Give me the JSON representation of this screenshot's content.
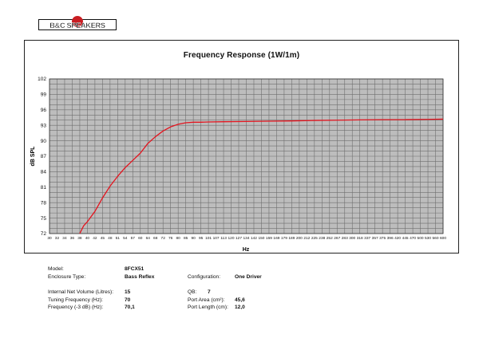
{
  "brand": {
    "logo_text": "B&C SPEAKERS"
  },
  "chart_data": {
    "type": "line",
    "title": "Frequency Response (1W/1m)",
    "xlabel": "Hz",
    "ylabel": "dB SPL",
    "ylim": [
      72,
      102
    ],
    "yticks": [
      72,
      75,
      78,
      81,
      84,
      87,
      90,
      93,
      96,
      99,
      102
    ],
    "xticks": [
      "30",
      "32",
      "34",
      "36",
      "38",
      "40",
      "42",
      "45",
      "48",
      "51",
      "54",
      "57",
      "60",
      "64",
      "68",
      "72",
      "76",
      "80",
      "85",
      "90",
      "95",
      "101",
      "107",
      "113",
      "120",
      "127",
      "134",
      "142",
      "150",
      "159",
      "169",
      "179",
      "189",
      "200",
      "212",
      "225",
      "238",
      "252",
      "267",
      "283",
      "300",
      "318",
      "337",
      "357",
      "375",
      "396",
      "420",
      "445",
      "470",
      "500",
      "530",
      "560",
      "600"
    ],
    "grid": true,
    "series": [
      {
        "color": "#e3151f",
        "points": [
          [
            38,
            72.0
          ],
          [
            39,
            73.5
          ],
          [
            40,
            74.3
          ],
          [
            42,
            76.3
          ],
          [
            45,
            78.9
          ],
          [
            48,
            81.2
          ],
          [
            51,
            83.1
          ],
          [
            54,
            84.8
          ],
          [
            57,
            86.2
          ],
          [
            60,
            87.6
          ],
          [
            64,
            89.5
          ],
          [
            68,
            90.8
          ],
          [
            72,
            91.9
          ],
          [
            76,
            92.7
          ],
          [
            80,
            93.2
          ],
          [
            85,
            93.5
          ],
          [
            90,
            93.6
          ],
          [
            95,
            93.6
          ],
          [
            101,
            93.65
          ],
          [
            113,
            93.7
          ],
          [
            134,
            93.75
          ],
          [
            159,
            93.8
          ],
          [
            189,
            93.85
          ],
          [
            225,
            93.95
          ],
          [
            267,
            94.0
          ],
          [
            318,
            94.05
          ],
          [
            375,
            94.1
          ],
          [
            445,
            94.1
          ],
          [
            530,
            94.15
          ],
          [
            600,
            94.2
          ]
        ]
      }
    ]
  },
  "specs": {
    "model_label": "Model:",
    "model_value": "8FCX51",
    "enclosure_label": "Enclosure Type:",
    "enclosure_value": "Bass Reflex",
    "config_label": "Configuration:",
    "config_value": "One Driver",
    "volume_label": "Internal  Net Volume (Litres):",
    "volume_value": "15",
    "qb_label": "QB:",
    "qb_value": "7",
    "tuning_label": "Tuning Frequency (Hz):",
    "tuning_value": "70",
    "port_area_label": "Port Area (cm²):",
    "port_area_value": "45,6",
    "f3_label": "Frequency (-3 dB) (Hz):",
    "f3_value": "70,1",
    "port_length_label": "Port Length (cm):",
    "port_length_value": "12,0"
  }
}
